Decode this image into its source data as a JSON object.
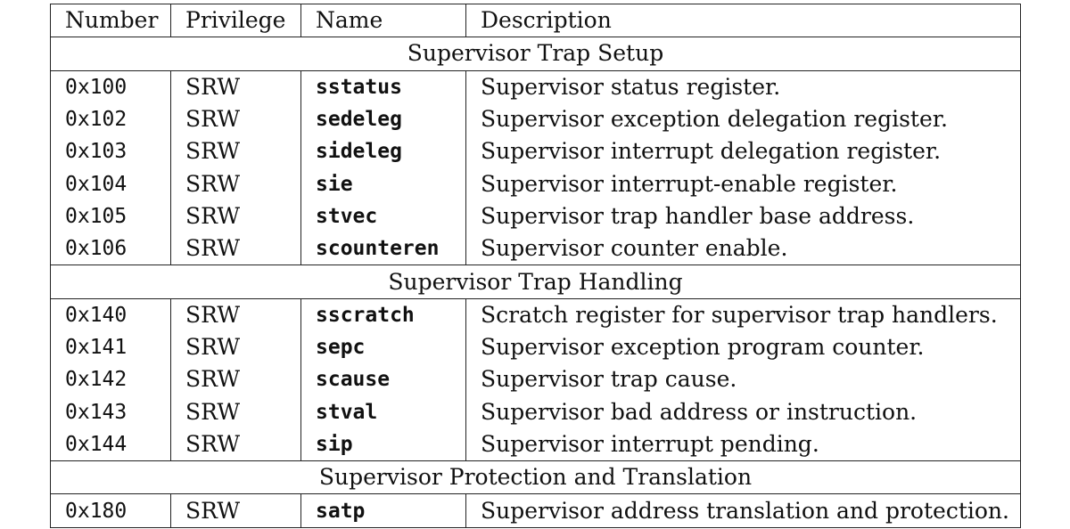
{
  "headers": {
    "number": "Number",
    "privilege": "Privilege",
    "name": "Name",
    "description": "Description"
  },
  "sections": [
    {
      "title": "Supervisor Trap Setup",
      "rows": [
        {
          "number": "0x100",
          "privilege": "SRW",
          "name": "sstatus",
          "description": "Supervisor status register."
        },
        {
          "number": "0x102",
          "privilege": "SRW",
          "name": "sedeleg",
          "description": "Supervisor exception delegation register."
        },
        {
          "number": "0x103",
          "privilege": "SRW",
          "name": "sideleg",
          "description": "Supervisor interrupt delegation register."
        },
        {
          "number": "0x104",
          "privilege": "SRW",
          "name": "sie",
          "description": "Supervisor interrupt-enable register."
        },
        {
          "number": "0x105",
          "privilege": "SRW",
          "name": "stvec",
          "description": "Supervisor trap handler base address."
        },
        {
          "number": "0x106",
          "privilege": "SRW",
          "name": "scounteren",
          "description": "Supervisor counter enable."
        }
      ]
    },
    {
      "title": "Supervisor Trap Handling",
      "rows": [
        {
          "number": "0x140",
          "privilege": "SRW",
          "name": "sscratch",
          "description": "Scratch register for supervisor trap handlers."
        },
        {
          "number": "0x141",
          "privilege": "SRW",
          "name": "sepc",
          "description": "Supervisor exception program counter."
        },
        {
          "number": "0x142",
          "privilege": "SRW",
          "name": "scause",
          "description": "Supervisor trap cause."
        },
        {
          "number": "0x143",
          "privilege": "SRW",
          "name": "stval",
          "description": "Supervisor bad address or instruction."
        },
        {
          "number": "0x144",
          "privilege": "SRW",
          "name": "sip",
          "description": "Supervisor interrupt pending."
        }
      ]
    },
    {
      "title": "Supervisor Protection and Translation",
      "rows": [
        {
          "number": "0x180",
          "privilege": "SRW",
          "name": "satp",
          "description": "Supervisor address translation and protection."
        }
      ]
    }
  ]
}
